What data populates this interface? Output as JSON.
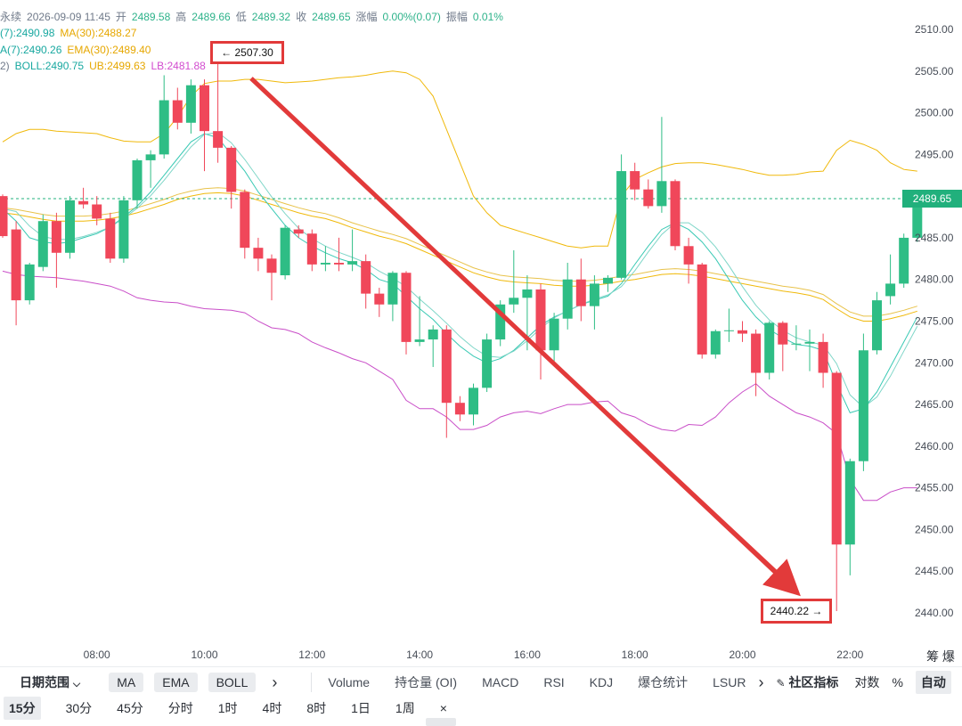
{
  "header": {
    "line1": [
      {
        "text": "永续",
        "cls": "mute"
      },
      {
        "text": "2026-09-09 11:45",
        "cls": "mute"
      },
      {
        "text": "开",
        "cls": "mute"
      },
      {
        "text": "2489.58",
        "cls": "vg"
      },
      {
        "text": "高",
        "cls": "mute"
      },
      {
        "text": "2489.66",
        "cls": "vg"
      },
      {
        "text": "低",
        "cls": "mute"
      },
      {
        "text": "2489.32",
        "cls": "vg"
      },
      {
        "text": "收",
        "cls": "mute"
      },
      {
        "text": "2489.65",
        "cls": "vg"
      },
      {
        "text": "涨幅",
        "cls": "mute"
      },
      {
        "text": "0.00%(0.07)",
        "cls": "vg"
      },
      {
        "text": "振幅",
        "cls": "mute"
      },
      {
        "text": "0.01%",
        "cls": "vg"
      }
    ],
    "line2": [
      {
        "text": "(7):2490.98",
        "cls": "vt"
      },
      {
        "text": "MA(30):2488.27",
        "cls": "vy"
      }
    ],
    "line3": [
      {
        "text": "A(7):2490.26",
        "cls": "vt"
      },
      {
        "text": "EMA(30):2489.40",
        "cls": "vy"
      }
    ],
    "line4": [
      {
        "text": "2)",
        "cls": "mute"
      },
      {
        "text": "BOLL:2490.75",
        "cls": "vt"
      },
      {
        "text": "UB:2499.63",
        "cls": "vy"
      },
      {
        "text": "LB:2481.88",
        "cls": "vp"
      }
    ]
  },
  "current_price": "2489.65",
  "callouts": {
    "high": "← 2507.30",
    "low": "2440.22 →"
  },
  "unit_label": "筹 爆",
  "toolbar": {
    "date_range": "日期范围",
    "indicators": [
      "MA",
      "EMA",
      "BOLL"
    ],
    "more1": "›",
    "tabs": [
      "Volume",
      "持仓量 (OI)",
      "MACD",
      "RSI",
      "KDJ",
      "爆仓统计",
      "LSUR"
    ],
    "more2": "›",
    "community": "社区指标",
    "log": "对数",
    "percent": "%",
    "auto": "自动"
  },
  "timeframes": [
    "15分",
    "30分",
    "45分",
    "分时",
    "1时",
    "4时",
    "8时",
    "1日",
    "1周"
  ],
  "active_timeframe": "15分",
  "close_symbol": "×",
  "colors": {
    "up": "#2ebd85",
    "down": "#f0475a",
    "ma_short": "#39c9b4",
    "ma_long": "#f0b90b",
    "boll_upper": "#f0b90b",
    "boll_lower": "#c94ec8",
    "arrow": "#e23a3a",
    "current_line": "#21b07c"
  },
  "chart_data": {
    "type": "candlestick",
    "y_ticks": [
      2510,
      2505,
      2500,
      2495,
      2490,
      2485,
      2480,
      2475,
      2470,
      2465,
      2460,
      2455,
      2450,
      2445,
      2440
    ],
    "x_ticks": [
      "08:00",
      "10:00",
      "12:00",
      "14:00",
      "16:00",
      "18:00",
      "20:00",
      "22:00"
    ],
    "x_tick_index": [
      7,
      15,
      23,
      31,
      39,
      47,
      55,
      63
    ],
    "current_price": 2489.65,
    "annotations": {
      "high": 2507.3,
      "low": 2440.22
    },
    "candles": [
      {
        "o": 2490.0,
        "h": 2490.2,
        "l": 2485.0,
        "c": 2485.2
      },
      {
        "o": 2486.0,
        "h": 2487.0,
        "l": 2474.5,
        "c": 2477.5
      },
      {
        "o": 2477.5,
        "h": 2482.0,
        "l": 2477.0,
        "c": 2481.8
      },
      {
        "o": 2481.5,
        "h": 2487.8,
        "l": 2481.0,
        "c": 2487.0
      },
      {
        "o": 2487.0,
        "h": 2488.0,
        "l": 2479.0,
        "c": 2483.2
      },
      {
        "o": 2483.2,
        "h": 2490.0,
        "l": 2482.5,
        "c": 2489.5
      },
      {
        "o": 2489.4,
        "h": 2491.0,
        "l": 2488.5,
        "c": 2489.0
      },
      {
        "o": 2489.0,
        "h": 2490.0,
        "l": 2486.5,
        "c": 2487.3
      },
      {
        "o": 2487.3,
        "h": 2488.0,
        "l": 2482.0,
        "c": 2482.5
      },
      {
        "o": 2482.5,
        "h": 2490.0,
        "l": 2482.0,
        "c": 2489.5
      },
      {
        "o": 2489.5,
        "h": 2494.5,
        "l": 2488.5,
        "c": 2494.3
      },
      {
        "o": 2494.3,
        "h": 2495.5,
        "l": 2491.0,
        "c": 2495.0
      },
      {
        "o": 2495.0,
        "h": 2504.5,
        "l": 2494.5,
        "c": 2501.5
      },
      {
        "o": 2501.5,
        "h": 2503.0,
        "l": 2498.0,
        "c": 2498.8
      },
      {
        "o": 2498.8,
        "h": 2504.0,
        "l": 2497.5,
        "c": 2503.3
      },
      {
        "o": 2503.3,
        "h": 2504.0,
        "l": 2493.0,
        "c": 2497.8
      },
      {
        "o": 2497.8,
        "h": 2507.3,
        "l": 2494.0,
        "c": 2495.8
      },
      {
        "o": 2495.8,
        "h": 2496.0,
        "l": 2488.5,
        "c": 2490.5
      },
      {
        "o": 2490.5,
        "h": 2490.8,
        "l": 2482.5,
        "c": 2483.8
      },
      {
        "o": 2483.8,
        "h": 2485.0,
        "l": 2481.0,
        "c": 2482.5
      },
      {
        "o": 2482.5,
        "h": 2483.0,
        "l": 2477.5,
        "c": 2480.8
      },
      {
        "o": 2480.5,
        "h": 2486.5,
        "l": 2480.0,
        "c": 2486.2
      },
      {
        "o": 2486.0,
        "h": 2486.5,
        "l": 2485.0,
        "c": 2485.5
      },
      {
        "o": 2485.5,
        "h": 2486.0,
        "l": 2481.0,
        "c": 2481.8
      },
      {
        "o": 2481.8,
        "h": 2484.0,
        "l": 2481.0,
        "c": 2482.0
      },
      {
        "o": 2482.0,
        "h": 2485.0,
        "l": 2481.0,
        "c": 2481.8
      },
      {
        "o": 2481.8,
        "h": 2486.0,
        "l": 2481.0,
        "c": 2482.2
      },
      {
        "o": 2482.2,
        "h": 2483.0,
        "l": 2476.5,
        "c": 2478.3
      },
      {
        "o": 2478.3,
        "h": 2479.0,
        "l": 2475.5,
        "c": 2477.0
      },
      {
        "o": 2477.0,
        "h": 2481.0,
        "l": 2475.0,
        "c": 2480.8
      },
      {
        "o": 2480.8,
        "h": 2481.0,
        "l": 2471.0,
        "c": 2472.5
      },
      {
        "o": 2472.5,
        "h": 2478.0,
        "l": 2472.0,
        "c": 2472.8
      },
      {
        "o": 2472.8,
        "h": 2474.5,
        "l": 2469.5,
        "c": 2474.0
      },
      {
        "o": 2474.0,
        "h": 2474.5,
        "l": 2461.0,
        "c": 2465.2
      },
      {
        "o": 2465.2,
        "h": 2466.0,
        "l": 2463.0,
        "c": 2463.8
      },
      {
        "o": 2463.8,
        "h": 2467.5,
        "l": 2462.5,
        "c": 2467.0
      },
      {
        "o": 2467.0,
        "h": 2473.5,
        "l": 2466.5,
        "c": 2472.8
      },
      {
        "o": 2472.8,
        "h": 2477.5,
        "l": 2472.0,
        "c": 2477.0
      },
      {
        "o": 2477.0,
        "h": 2483.5,
        "l": 2476.0,
        "c": 2477.8
      },
      {
        "o": 2477.8,
        "h": 2480.5,
        "l": 2471.5,
        "c": 2478.8
      },
      {
        "o": 2478.8,
        "h": 2479.5,
        "l": 2468.0,
        "c": 2471.5
      },
      {
        "o": 2471.5,
        "h": 2476.0,
        "l": 2470.0,
        "c": 2475.3
      },
      {
        "o": 2475.3,
        "h": 2482.0,
        "l": 2474.0,
        "c": 2480.0
      },
      {
        "o": 2480.0,
        "h": 2482.5,
        "l": 2475.0,
        "c": 2476.8
      },
      {
        "o": 2476.8,
        "h": 2480.5,
        "l": 2474.0,
        "c": 2479.5
      },
      {
        "o": 2479.5,
        "h": 2480.5,
        "l": 2478.5,
        "c": 2480.2
      },
      {
        "o": 2480.2,
        "h": 2495.0,
        "l": 2480.0,
        "c": 2493.0
      },
      {
        "o": 2493.0,
        "h": 2494.0,
        "l": 2489.5,
        "c": 2490.8
      },
      {
        "o": 2490.8,
        "h": 2492.0,
        "l": 2488.5,
        "c": 2488.8
      },
      {
        "o": 2488.8,
        "h": 2499.5,
        "l": 2488.0,
        "c": 2491.8
      },
      {
        "o": 2491.8,
        "h": 2492.0,
        "l": 2483.5,
        "c": 2484.0
      },
      {
        "o": 2484.0,
        "h": 2485.0,
        "l": 2479.5,
        "c": 2481.8
      },
      {
        "o": 2481.8,
        "h": 2482.0,
        "l": 2470.5,
        "c": 2471.0
      },
      {
        "o": 2471.0,
        "h": 2474.0,
        "l": 2470.5,
        "c": 2473.8
      },
      {
        "o": 2473.8,
        "h": 2476.5,
        "l": 2472.5,
        "c": 2473.9
      },
      {
        "o": 2473.9,
        "h": 2475.0,
        "l": 2472.5,
        "c": 2473.5
      },
      {
        "o": 2473.5,
        "h": 2474.0,
        "l": 2466.0,
        "c": 2468.8
      },
      {
        "o": 2468.8,
        "h": 2475.0,
        "l": 2468.0,
        "c": 2474.8
      },
      {
        "o": 2474.8,
        "h": 2475.0,
        "l": 2469.0,
        "c": 2472.2
      },
      {
        "o": 2472.2,
        "h": 2474.5,
        "l": 2471.5,
        "c": 2472.3
      },
      {
        "o": 2472.3,
        "h": 2474.0,
        "l": 2469.0,
        "c": 2472.5
      },
      {
        "o": 2472.5,
        "h": 2473.5,
        "l": 2467.0,
        "c": 2468.8
      },
      {
        "o": 2468.8,
        "h": 2469.0,
        "l": 2440.22,
        "c": 2448.2
      },
      {
        "o": 2448.2,
        "h": 2458.5,
        "l": 2444.5,
        "c": 2458.2
      },
      {
        "o": 2458.2,
        "h": 2473.5,
        "l": 2457.0,
        "c": 2471.5
      },
      {
        "o": 2471.5,
        "h": 2478.5,
        "l": 2471.0,
        "c": 2477.5
      },
      {
        "o": 2478.0,
        "h": 2483.0,
        "l": 2477.0,
        "c": 2479.5
      },
      {
        "o": 2479.5,
        "h": 2485.5,
        "l": 2479.0,
        "c": 2485.0
      },
      {
        "o": 2485.0,
        "h": 2489.66,
        "l": 2484.5,
        "c": 2489.65
      }
    ],
    "ma_short": [
      2488.5,
      2487.0,
      2485.0,
      2484.5,
      2484.3,
      2484.5,
      2485.0,
      2485.5,
      2486.3,
      2487.5,
      2488.8,
      2490.5,
      2492.5,
      2494.5,
      2496.5,
      2497.5,
      2497.0,
      2495.0,
      2493.0,
      2490.5,
      2488.5,
      2486.5,
      2485.0,
      2484.0,
      2483.2,
      2482.5,
      2482.0,
      2481.2,
      2480.0,
      2479.5,
      2478.0,
      2476.5,
      2475.2,
      2473.5,
      2472.0,
      2470.8,
      2470.0,
      2470.5,
      2471.5,
      2473.0,
      2474.5,
      2475.5,
      2476.2,
      2477.0,
      2477.5,
      2478.0,
      2479.5,
      2481.8,
      2484.0,
      2486.0,
      2486.8,
      2486.0,
      2484.5,
      2482.5,
      2480.0,
      2477.5,
      2475.5,
      2474.0,
      2473.0,
      2472.2,
      2472.0,
      2471.5,
      2467.5,
      2464.0,
      2464.5,
      2466.5,
      2469.5,
      2472.5,
      2475.5
    ],
    "ma_long": [
      2488.0,
      2487.8,
      2487.5,
      2487.2,
      2487.0,
      2487.0,
      2487.0,
      2487.1,
      2487.3,
      2487.6,
      2488.0,
      2488.5,
      2489.0,
      2489.6,
      2490.0,
      2490.3,
      2490.4,
      2490.3,
      2490.0,
      2489.5,
      2489.0,
      2488.5,
      2488.0,
      2487.6,
      2487.3,
      2486.8,
      2486.2,
      2485.7,
      2485.2,
      2484.8,
      2484.3,
      2483.6,
      2482.9,
      2482.2,
      2481.5,
      2480.8,
      2480.3,
      2479.9,
      2479.7,
      2479.6,
      2479.5,
      2479.3,
      2479.2,
      2479.2,
      2479.3,
      2479.5,
      2479.8,
      2480.0,
      2480.3,
      2480.6,
      2480.7,
      2480.6,
      2480.4,
      2480.1,
      2479.8,
      2479.5,
      2479.2,
      2478.9,
      2478.6,
      2478.4,
      2478.1,
      2477.6,
      2476.5,
      2475.5,
      2475.0,
      2475.0,
      2475.3,
      2475.7,
      2476.2
    ],
    "boll_upper": [
      2496.5,
      2497.5,
      2498.0,
      2498.0,
      2497.8,
      2497.7,
      2497.6,
      2497.5,
      2497.0,
      2496.6,
      2496.5,
      2496.5,
      2497.5,
      2499.5,
      2502.0,
      2503.5,
      2503.8,
      2503.8,
      2504.0,
      2504.0,
      2503.8,
      2503.6,
      2503.7,
      2503.8,
      2504.0,
      2504.2,
      2504.3,
      2504.5,
      2504.8,
      2505.0,
      2504.8,
      2504.0,
      2502.0,
      2498.0,
      2494.0,
      2490.0,
      2488.0,
      2486.5,
      2486.0,
      2485.5,
      2485.0,
      2484.5,
      2484.0,
      2483.8,
      2484.0,
      2484.0,
      2490.0,
      2492.0,
      2492.8,
      2493.5,
      2493.9,
      2494.0,
      2494.0,
      2493.8,
      2493.5,
      2493.2,
      2492.8,
      2492.5,
      2492.5,
      2492.6,
      2492.9,
      2493.0,
      2495.5,
      2496.7,
      2496.2,
      2495.5,
      2494.0,
      2493.2,
      2493.0
    ],
    "boll_lower": [
      2481.0,
      2480.6,
      2480.4,
      2480.3,
      2480.2,
      2480.0,
      2479.8,
      2479.5,
      2479.2,
      2478.6,
      2477.8,
      2477.5,
      2477.3,
      2477.2,
      2476.8,
      2476.5,
      2476.4,
      2476.3,
      2476.0,
      2475.0,
      2474.2,
      2474.0,
      2473.5,
      2472.5,
      2471.8,
      2471.2,
      2470.5,
      2470.0,
      2469.0,
      2468.0,
      2465.5,
      2464.5,
      2464.5,
      2463.5,
      2462.0,
      2462.0,
      2462.5,
      2463.5,
      2464.0,
      2464.2,
      2463.9,
      2464.5,
      2465.0,
      2465.0,
      2465.3,
      2465.4,
      2464.0,
      2463.5,
      2462.6,
      2462.0,
      2461.8,
      2462.6,
      2462.5,
      2463.5,
      2465.2,
      2466.5,
      2467.5,
      2466.0,
      2465.0,
      2464.0,
      2463.5,
      2462.8,
      2461.5,
      2456.0,
      2453.5,
      2453.5,
      2454.5,
      2455.0,
      2455.0
    ]
  }
}
